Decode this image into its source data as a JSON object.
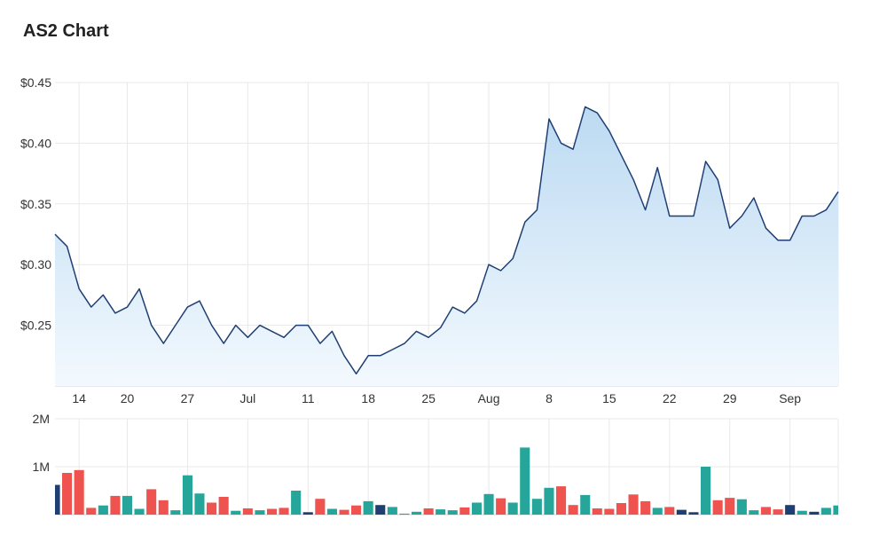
{
  "title": "AS2 Chart",
  "colors": {
    "line": "#1f3f73",
    "area_top": "#bcdaf2",
    "area_bottom": "#f3f9fe",
    "grid": "#e8e8e8",
    "axis_text": "#333333",
    "vol_up": "#26a69a",
    "vol_down": "#ef5350",
    "vol_flat": "#1f3f73"
  },
  "chart_data": [
    {
      "type": "area",
      "name": "price",
      "ylim": [
        0.2,
        0.45
      ],
      "y_ticks": [
        {
          "label": "$0.45",
          "v": 0.45
        },
        {
          "label": "$0.40",
          "v": 0.4
        },
        {
          "label": "$0.35",
          "v": 0.35
        },
        {
          "label": "$0.30",
          "v": 0.3
        },
        {
          "label": "$0.25",
          "v": 0.25
        }
      ],
      "x_ticks": [
        {
          "label": "14",
          "i": 2
        },
        {
          "label": "20",
          "i": 6
        },
        {
          "label": "27",
          "i": 11
        },
        {
          "label": "Jul",
          "i": 16
        },
        {
          "label": "11",
          "i": 21
        },
        {
          "label": "18",
          "i": 26
        },
        {
          "label": "25",
          "i": 31
        },
        {
          "label": "Aug",
          "i": 36
        },
        {
          "label": "8",
          "i": 41
        },
        {
          "label": "15",
          "i": 46
        },
        {
          "label": "22",
          "i": 51
        },
        {
          "label": "29",
          "i": 56
        },
        {
          "label": "Sep",
          "i": 61
        }
      ],
      "values": [
        0.325,
        0.315,
        0.28,
        0.265,
        0.275,
        0.26,
        0.265,
        0.28,
        0.25,
        0.235,
        0.25,
        0.265,
        0.27,
        0.25,
        0.235,
        0.25,
        0.24,
        0.25,
        0.245,
        0.24,
        0.25,
        0.25,
        0.235,
        0.245,
        0.225,
        0.21,
        0.225,
        0.225,
        0.23,
        0.235,
        0.245,
        0.24,
        0.248,
        0.265,
        0.26,
        0.27,
        0.3,
        0.295,
        0.305,
        0.335,
        0.345,
        0.42,
        0.4,
        0.395,
        0.43,
        0.425,
        0.41,
        0.39,
        0.37,
        0.345,
        0.38,
        0.34,
        0.34,
        0.34,
        0.385,
        0.37,
        0.33,
        0.34,
        0.355,
        0.33,
        0.32,
        0.32,
        0.34,
        0.34,
        0.345,
        0.36
      ]
    },
    {
      "type": "bar",
      "name": "volume",
      "ylim": [
        0,
        2000000
      ],
      "y_ticks": [
        {
          "label": "2M",
          "v": 2000000
        },
        {
          "label": "1M",
          "v": 1000000
        }
      ],
      "values": [
        620000,
        870000,
        930000,
        140000,
        190000,
        390000,
        390000,
        120000,
        530000,
        300000,
        90000,
        820000,
        440000,
        250000,
        370000,
        80000,
        130000,
        90000,
        120000,
        140000,
        500000,
        50000,
        330000,
        120000,
        100000,
        190000,
        280000,
        200000,
        160000,
        20000,
        60000,
        130000,
        110000,
        90000,
        150000,
        250000,
        430000,
        340000,
        250000,
        1400000,
        330000,
        560000,
        590000,
        200000,
        410000,
        130000,
        120000,
        240000,
        420000,
        280000,
        140000,
        160000,
        100000,
        50000,
        1000000,
        300000,
        350000,
        320000,
        90000,
        160000,
        110000,
        200000,
        80000,
        60000,
        140000,
        190000
      ],
      "direction": [
        "flat",
        "down",
        "down",
        "down",
        "up",
        "down",
        "up",
        "up",
        "down",
        "down",
        "up",
        "up",
        "up",
        "down",
        "down",
        "up",
        "down",
        "up",
        "down",
        "down",
        "up",
        "flat",
        "down",
        "up",
        "down",
        "down",
        "up",
        "flat",
        "up",
        "up",
        "up",
        "down",
        "up",
        "up",
        "down",
        "up",
        "up",
        "down",
        "up",
        "up",
        "up",
        "up",
        "down",
        "down",
        "up",
        "down",
        "down",
        "down",
        "down",
        "down",
        "up",
        "down",
        "flat",
        "flat",
        "up",
        "down",
        "down",
        "up",
        "up",
        "down",
        "down",
        "flat",
        "up",
        "flat",
        "up",
        "up"
      ]
    }
  ]
}
